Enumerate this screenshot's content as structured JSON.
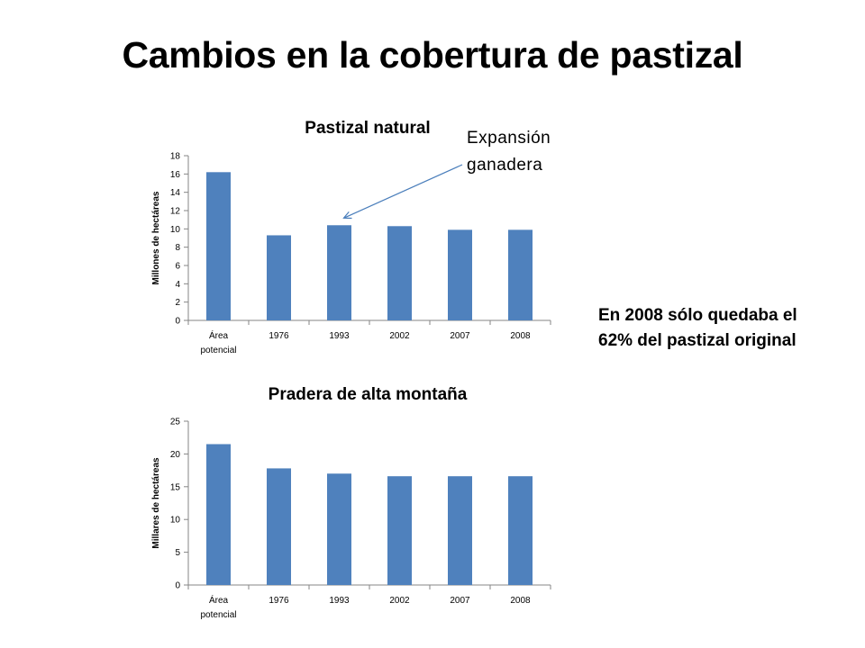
{
  "slide": {
    "title": "Cambios en la cobertura de pastizal",
    "note_line1": "En 2008 sólo quedaba el",
    "note_line2": "62% del pastizal original"
  },
  "colors": {
    "bar": "#4f81bd",
    "axis": "#868686",
    "arrow": "#4a7ebb"
  },
  "chart_data": [
    {
      "type": "bar",
      "title": "Pastizal natural",
      "ylabel": "Millones de hectáreas",
      "xlabel": "",
      "categories": [
        [
          "Área",
          "potencial"
        ],
        [
          "1976"
        ],
        [
          "1993"
        ],
        [
          "2002"
        ],
        [
          "2007"
        ],
        [
          "2008"
        ]
      ],
      "values": [
        16.2,
        9.3,
        10.4,
        10.3,
        9.9,
        9.9
      ],
      "ylim": [
        0,
        18
      ],
      "yticks": [
        0,
        2,
        4,
        6,
        8,
        10,
        12,
        14,
        16,
        18
      ],
      "grid": false,
      "annotation": {
        "text_line1": "Expansión",
        "text_line2": "ganadera",
        "target_category": "1993"
      }
    },
    {
      "type": "bar",
      "title": "Pradera de alta montaña",
      "ylabel": "Millares de hectáreas",
      "xlabel": "",
      "categories": [
        [
          "Área",
          "potencial"
        ],
        [
          "1976"
        ],
        [
          "1993"
        ],
        [
          "2002"
        ],
        [
          "2007"
        ],
        [
          "2008"
        ]
      ],
      "values": [
        21.5,
        17.8,
        17.0,
        16.6,
        16.6,
        16.6
      ],
      "ylim": [
        0,
        25
      ],
      "yticks": [
        0,
        5,
        10,
        15,
        20,
        25
      ],
      "grid": false
    }
  ]
}
